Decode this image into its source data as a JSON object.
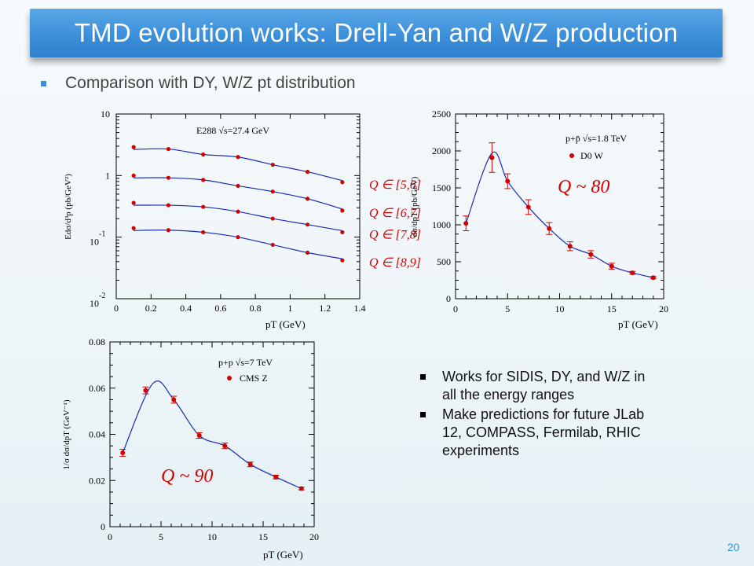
{
  "slide": {
    "title": "TMD evolution works: Drell-Yan and W/Z production",
    "subtitle_bullet": "Comparison with DY, W/Z pt distribution",
    "right_bullets": [
      "Works for SIDIS, DY, and W/Z in all the energy ranges",
      "Make predictions for future JLab 12, COMPASS, Fermilab, RHIC experiments"
    ],
    "page_number": "20",
    "accent_color": "#3c8fd9"
  },
  "chart_data": [
    {
      "type": "scatter",
      "title": "E288 √s=27.4 GeV",
      "xlabel": "pT (GeV)",
      "ylabel": "Edσ/d³p (pb/GeV²)",
      "xlim": [
        0,
        1.4
      ],
      "ylim": [
        0.01,
        10
      ],
      "yscale": "log",
      "xticks": [
        "0",
        "0.2",
        "0.4",
        "0.6",
        "0.8",
        "1",
        "1.2",
        "1.4"
      ],
      "yticks": [
        "10",
        "1",
        "10-1",
        "10-2"
      ],
      "series": [
        {
          "name": "Q ∈ [5,6]",
          "x": [
            0.1,
            0.3,
            0.5,
            0.7,
            0.9,
            1.1,
            1.3
          ],
          "y": [
            2.9,
            2.7,
            2.2,
            2.0,
            1.5,
            1.15,
            0.78
          ]
        },
        {
          "name": "Q ∈ [6,7]",
          "x": [
            0.1,
            0.3,
            0.5,
            0.7,
            0.9,
            1.1,
            1.3
          ],
          "y": [
            1.0,
            0.92,
            0.85,
            0.68,
            0.55,
            0.42,
            0.27
          ]
        },
        {
          "name": "Q ∈ [7,8]",
          "x": [
            0.1,
            0.3,
            0.5,
            0.7,
            0.9,
            1.1,
            1.3
          ],
          "y": [
            0.36,
            0.33,
            0.31,
            0.26,
            0.2,
            0.16,
            0.12
          ]
        },
        {
          "name": "Q ∈ [8,9]",
          "x": [
            0.1,
            0.3,
            0.5,
            0.7,
            0.9,
            1.1,
            1.3
          ],
          "y": [
            0.14,
            0.13,
            0.12,
            0.1,
            0.075,
            0.056,
            0.042
          ]
        }
      ]
    },
    {
      "type": "scatter",
      "title": "p+p̄ √s=1.8 TeV",
      "legend": "D0 W",
      "annotation": "Q ~ 80",
      "xlabel": "pT (GeV)",
      "ylabel": "dσ/dpT (pb/GeV)",
      "xlim": [
        0,
        20
      ],
      "ylim": [
        0,
        2500
      ],
      "xticks": [
        "0",
        "5",
        "10",
        "15",
        "20"
      ],
      "yticks": [
        "0",
        "500",
        "1000",
        "1500",
        "2000",
        "2500"
      ],
      "x": [
        1,
        3.5,
        5,
        7,
        9,
        11,
        13,
        15,
        17,
        19
      ],
      "y": [
        1020,
        1910,
        1590,
        1240,
        950,
        710,
        600,
        440,
        350,
        285
      ],
      "yerr": [
        100,
        200,
        100,
        100,
        80,
        60,
        50,
        40,
        20,
        15
      ]
    },
    {
      "type": "scatter",
      "title": "p+p √s=7 TeV",
      "legend": "CMS Z",
      "annotation": "Q ~ 90",
      "xlabel": "pT (GeV)",
      "ylabel": "1/σ dσ/dpT (GeV⁻¹)",
      "xlim": [
        0,
        20
      ],
      "ylim": [
        0,
        0.08
      ],
      "xticks": [
        "0",
        "5",
        "10",
        "15",
        "20"
      ],
      "yticks": [
        "0",
        "0.02",
        "0.04",
        "0.06",
        "0.08"
      ],
      "x": [
        1.25,
        3.5,
        6.25,
        8.75,
        11.25,
        13.75,
        16.25,
        18.75
      ],
      "y": [
        0.032,
        0.059,
        0.055,
        0.0395,
        0.035,
        0.027,
        0.0215,
        0.0165
      ],
      "yerr": [
        0.0015,
        0.0015,
        0.0015,
        0.0012,
        0.0012,
        0.001,
        0.0008,
        0.0006
      ]
    }
  ]
}
